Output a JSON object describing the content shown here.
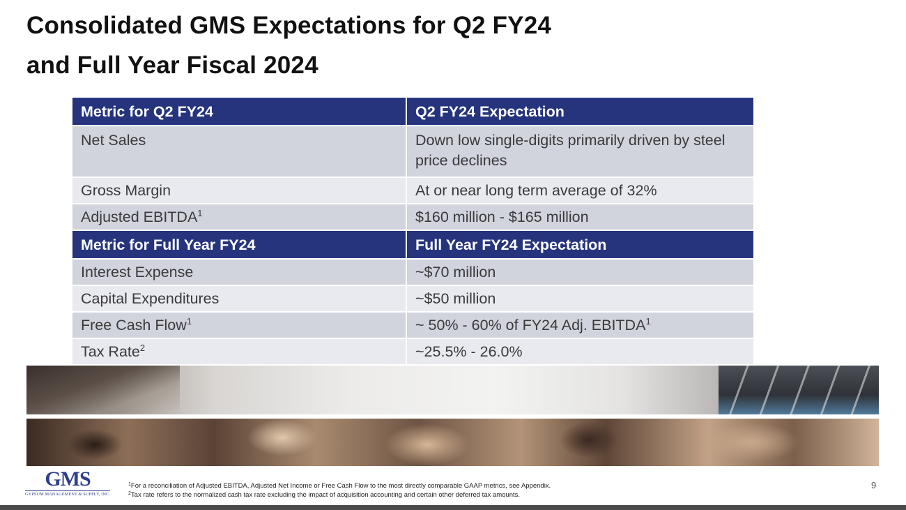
{
  "slide": {
    "title_line1": "Consolidated GMS Expectations for Q2 FY24",
    "title_line2": "and Full Year Fiscal 2024",
    "page_number": "9"
  },
  "q2_table": {
    "header": {
      "metric": "Metric for Q2 FY24",
      "expectation": "Q2 FY24 Expectation"
    },
    "rows": [
      {
        "metric": "Net Sales",
        "metric_sup": "",
        "expectation": "Down low single-digits primarily driven by steel price declines",
        "expectation_sup": ""
      },
      {
        "metric": "Gross Margin",
        "metric_sup": "",
        "expectation": "At or near long term average of 32%",
        "expectation_sup": ""
      },
      {
        "metric": "Adjusted EBITDA",
        "metric_sup": "1",
        "expectation": "$160 million - $165 million",
        "expectation_sup": ""
      }
    ]
  },
  "fy_table": {
    "header": {
      "metric": "Metric for Full Year FY24",
      "expectation": "Full Year FY24 Expectation"
    },
    "rows": [
      {
        "metric": "Interest Expense",
        "metric_sup": "",
        "expectation": "~$70 million",
        "expectation_sup": ""
      },
      {
        "metric": "Capital Expenditures",
        "metric_sup": "",
        "expectation": "~$50 million",
        "expectation_sup": ""
      },
      {
        "metric": "Free Cash Flow",
        "metric_sup": "1",
        "expectation": "~ 50% - 60% of FY24 Adj. EBITDA",
        "expectation_sup": "1"
      },
      {
        "metric": "Tax Rate",
        "metric_sup": "2",
        "expectation": "~25.5% - 26.0%",
        "expectation_sup": ""
      }
    ]
  },
  "footnotes": [
    {
      "marker": "1",
      "text": "For a reconciliation of Adjusted EBITDA, Adjusted Net Income or Free Cash Flow to the most directly comparable GAAP metrics, see Appendix."
    },
    {
      "marker": "2",
      "text": "Tax rate refers to the normalized cash tax rate excluding the impact of acquisition accounting and certain other deferred tax amounts."
    }
  ],
  "logo": {
    "mark": "GMS",
    "tagline": "GYPSUM MANAGEMENT & SUPPLY, INC."
  },
  "colors": {
    "header_bg": "#26347e",
    "row_dark": "#d1d3dd",
    "row_light": "#e9eaf0",
    "logo_blue": "#2d3f8a"
  }
}
